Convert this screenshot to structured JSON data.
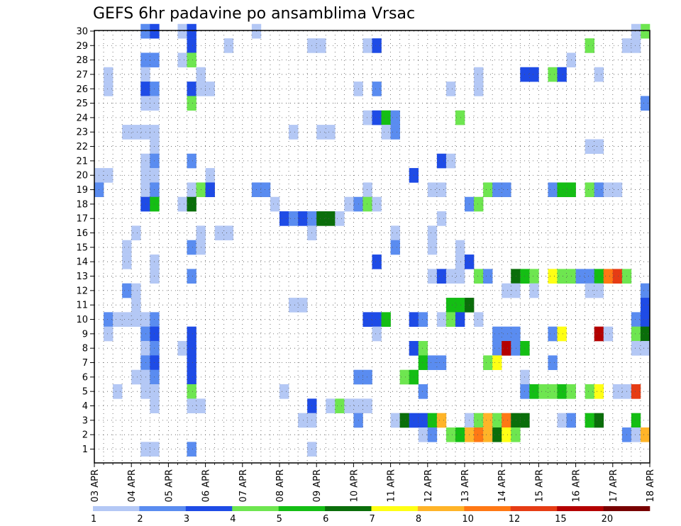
{
  "chart_data": {
    "type": "heatmap",
    "title": "GEFS 6hr padavine po ansamblima Vrsac",
    "xlabel": "",
    "ylabel": "",
    "x_tick_labels": [
      "03 APR",
      "04 APR",
      "05 APR",
      "06 APR",
      "07 APR",
      "08 APR",
      "09 APR",
      "10 APR",
      "11 APR",
      "12 APR",
      "13 APR",
      "14 APR",
      "15 APR",
      "16 APR",
      "17 APR",
      "18 APR"
    ],
    "y_tick_labels": [
      "1",
      "2",
      "3",
      "4",
      "5",
      "6",
      "7",
      "8",
      "9",
      "10",
      "11",
      "12",
      "13",
      "14",
      "15",
      "16",
      "17",
      "18",
      "19",
      "20",
      "21",
      "22",
      "23",
      "24",
      "25",
      "26",
      "27",
      "28",
      "29",
      "30"
    ],
    "n_time_steps": 60,
    "n_members": 30,
    "grid": true,
    "colorbar": {
      "position": "bottom",
      "levels": [
        1,
        2,
        3,
        4,
        5,
        6,
        7,
        8,
        10,
        12,
        15,
        20
      ],
      "colors": [
        "#b4c8f5",
        "#5a8cf0",
        "#1e4be6",
        "#6ee650",
        "#14be14",
        "#0a6e0a",
        "#ffff14",
        "#ffb428",
        "#ff7814",
        "#e63c14",
        "#b40000",
        "#780000"
      ]
    },
    "cells": [
      [
        30,
        5,
        1
      ],
      [
        30,
        6,
        2
      ],
      [
        30,
        9,
        0
      ],
      [
        30,
        10,
        2
      ],
      [
        30,
        17,
        0
      ],
      [
        30,
        59,
        3
      ],
      [
        30,
        58,
        0
      ],
      [
        29,
        10,
        2
      ],
      [
        29,
        14,
        0
      ],
      [
        29,
        23,
        0
      ],
      [
        29,
        24,
        0
      ],
      [
        29,
        29,
        0
      ],
      [
        29,
        30,
        2
      ],
      [
        29,
        53,
        3
      ],
      [
        29,
        57,
        0
      ],
      [
        29,
        58,
        0
      ],
      [
        28,
        5,
        1
      ],
      [
        28,
        6,
        1
      ],
      [
        28,
        9,
        0
      ],
      [
        28,
        10,
        3
      ],
      [
        28,
        51,
        0
      ],
      [
        27,
        1,
        0
      ],
      [
        27,
        5,
        0
      ],
      [
        27,
        11,
        0
      ],
      [
        27,
        41,
        0
      ],
      [
        27,
        46,
        2
      ],
      [
        27,
        47,
        2
      ],
      [
        27,
        49,
        3
      ],
      [
        27,
        50,
        2
      ],
      [
        27,
        54,
        0
      ],
      [
        26,
        1,
        0
      ],
      [
        26,
        5,
        2
      ],
      [
        26,
        6,
        1
      ],
      [
        26,
        10,
        2
      ],
      [
        26,
        11,
        0
      ],
      [
        26,
        12,
        0
      ],
      [
        26,
        28,
        0
      ],
      [
        26,
        30,
        1
      ],
      [
        26,
        38,
        0
      ],
      [
        26,
        41,
        0
      ],
      [
        25,
        5,
        0
      ],
      [
        25,
        6,
        0
      ],
      [
        25,
        10,
        3
      ],
      [
        25,
        59,
        1
      ],
      [
        24,
        29,
        0
      ],
      [
        24,
        30,
        2
      ],
      [
        24,
        31,
        4
      ],
      [
        24,
        32,
        1
      ],
      [
        24,
        39,
        3
      ],
      [
        23,
        3,
        0
      ],
      [
        23,
        4,
        0
      ],
      [
        23,
        5,
        0
      ],
      [
        23,
        6,
        0
      ],
      [
        23,
        21,
        0
      ],
      [
        23,
        24,
        0
      ],
      [
        23,
        25,
        0
      ],
      [
        23,
        31,
        0
      ],
      [
        23,
        32,
        1
      ],
      [
        22,
        6,
        0
      ],
      [
        22,
        53,
        0
      ],
      [
        22,
        54,
        0
      ],
      [
        21,
        5,
        0
      ],
      [
        21,
        6,
        1
      ],
      [
        21,
        10,
        1
      ],
      [
        21,
        37,
        2
      ],
      [
        21,
        38,
        0
      ],
      [
        20,
        0,
        0
      ],
      [
        20,
        1,
        0
      ],
      [
        20,
        5,
        0
      ],
      [
        20,
        6,
        0
      ],
      [
        20,
        12,
        0
      ],
      [
        20,
        34,
        2
      ],
      [
        19,
        0,
        1
      ],
      [
        19,
        5,
        0
      ],
      [
        19,
        6,
        1
      ],
      [
        19,
        10,
        0
      ],
      [
        19,
        11,
        3
      ],
      [
        19,
        12,
        2
      ],
      [
        19,
        17,
        1
      ],
      [
        19,
        18,
        1
      ],
      [
        19,
        29,
        0
      ],
      [
        19,
        36,
        0
      ],
      [
        19,
        37,
        0
      ],
      [
        19,
        42,
        3
      ],
      [
        19,
        43,
        1
      ],
      [
        19,
        44,
        1
      ],
      [
        19,
        49,
        1
      ],
      [
        19,
        50,
        4
      ],
      [
        19,
        51,
        4
      ],
      [
        19,
        53,
        3
      ],
      [
        19,
        54,
        1
      ],
      [
        19,
        55,
        0
      ],
      [
        19,
        56,
        0
      ],
      [
        18,
        5,
        2
      ],
      [
        18,
        6,
        4
      ],
      [
        18,
        9,
        0
      ],
      [
        18,
        10,
        5
      ],
      [
        18,
        19,
        0
      ],
      [
        18,
        27,
        0
      ],
      [
        18,
        28,
        1
      ],
      [
        18,
        29,
        3
      ],
      [
        18,
        30,
        0
      ],
      [
        18,
        40,
        1
      ],
      [
        18,
        41,
        3
      ],
      [
        17,
        20,
        2
      ],
      [
        17,
        21,
        1
      ],
      [
        17,
        22,
        2
      ],
      [
        17,
        23,
        1
      ],
      [
        17,
        24,
        5
      ],
      [
        17,
        25,
        5
      ],
      [
        17,
        26,
        0
      ],
      [
        17,
        37,
        0
      ],
      [
        16,
        4,
        0
      ],
      [
        16,
        11,
        0
      ],
      [
        16,
        13,
        0
      ],
      [
        16,
        14,
        0
      ],
      [
        16,
        23,
        0
      ],
      [
        16,
        32,
        0
      ],
      [
        16,
        36,
        0
      ],
      [
        15,
        3,
        0
      ],
      [
        15,
        10,
        1
      ],
      [
        15,
        11,
        0
      ],
      [
        15,
        32,
        1
      ],
      [
        15,
        36,
        0
      ],
      [
        15,
        39,
        0
      ],
      [
        14,
        3,
        0
      ],
      [
        14,
        6,
        0
      ],
      [
        14,
        30,
        2
      ],
      [
        14,
        39,
        0
      ],
      [
        14,
        40,
        2
      ],
      [
        13,
        6,
        0
      ],
      [
        13,
        10,
        1
      ],
      [
        13,
        36,
        0
      ],
      [
        13,
        37,
        2
      ],
      [
        13,
        38,
        0
      ],
      [
        13,
        39,
        0
      ],
      [
        13,
        41,
        3
      ],
      [
        13,
        42,
        1
      ],
      [
        13,
        45,
        5
      ],
      [
        13,
        46,
        4
      ],
      [
        13,
        47,
        3
      ],
      [
        13,
        49,
        6
      ],
      [
        13,
        50,
        3
      ],
      [
        13,
        51,
        3
      ],
      [
        13,
        52,
        1
      ],
      [
        13,
        53,
        1
      ],
      [
        13,
        54,
        4
      ],
      [
        13,
        55,
        8
      ],
      [
        13,
        56,
        9
      ],
      [
        13,
        57,
        3
      ],
      [
        12,
        3,
        1
      ],
      [
        12,
        4,
        0
      ],
      [
        12,
        44,
        0
      ],
      [
        12,
        45,
        0
      ],
      [
        12,
        47,
        0
      ],
      [
        12,
        53,
        0
      ],
      [
        12,
        54,
        0
      ],
      [
        12,
        59,
        1
      ],
      [
        11,
        4,
        0
      ],
      [
        11,
        21,
        0
      ],
      [
        11,
        22,
        0
      ],
      [
        11,
        38,
        4
      ],
      [
        11,
        39,
        4
      ],
      [
        11,
        40,
        5
      ],
      [
        11,
        59,
        2
      ],
      [
        10,
        1,
        1
      ],
      [
        10,
        2,
        0
      ],
      [
        10,
        3,
        0
      ],
      [
        10,
        4,
        0
      ],
      [
        10,
        5,
        0
      ],
      [
        10,
        6,
        1
      ],
      [
        10,
        29,
        2
      ],
      [
        10,
        30,
        2
      ],
      [
        10,
        31,
        4
      ],
      [
        10,
        34,
        2
      ],
      [
        10,
        35,
        1
      ],
      [
        10,
        37,
        0
      ],
      [
        10,
        38,
        3
      ],
      [
        10,
        39,
        2
      ],
      [
        10,
        41,
        0
      ],
      [
        10,
        58,
        1
      ],
      [
        10,
        59,
        2
      ],
      [
        9,
        1,
        0
      ],
      [
        9,
        5,
        1
      ],
      [
        9,
        6,
        2
      ],
      [
        9,
        10,
        2
      ],
      [
        9,
        30,
        0
      ],
      [
        9,
        43,
        1
      ],
      [
        9,
        44,
        1
      ],
      [
        9,
        45,
        1
      ],
      [
        9,
        49,
        1
      ],
      [
        9,
        50,
        6
      ],
      [
        9,
        54,
        10
      ],
      [
        9,
        55,
        0
      ],
      [
        9,
        58,
        3
      ],
      [
        9,
        59,
        5
      ],
      [
        8,
        5,
        0
      ],
      [
        8,
        6,
        1
      ],
      [
        8,
        9,
        0
      ],
      [
        8,
        10,
        2
      ],
      [
        8,
        34,
        2
      ],
      [
        8,
        35,
        3
      ],
      [
        8,
        43,
        1
      ],
      [
        8,
        44,
        10
      ],
      [
        8,
        45,
        1
      ],
      [
        8,
        46,
        4
      ],
      [
        8,
        58,
        0
      ],
      [
        8,
        59,
        0
      ],
      [
        7,
        5,
        1
      ],
      [
        7,
        6,
        2
      ],
      [
        7,
        10,
        2
      ],
      [
        7,
        35,
        4
      ],
      [
        7,
        36,
        1
      ],
      [
        7,
        37,
        1
      ],
      [
        7,
        42,
        3
      ],
      [
        7,
        43,
        6
      ],
      [
        7,
        49,
        1
      ],
      [
        6,
        4,
        0
      ],
      [
        6,
        5,
        0
      ],
      [
        6,
        6,
        1
      ],
      [
        6,
        10,
        2
      ],
      [
        6,
        28,
        1
      ],
      [
        6,
        29,
        1
      ],
      [
        6,
        33,
        3
      ],
      [
        6,
        34,
        4
      ],
      [
        6,
        46,
        0
      ],
      [
        5,
        2,
        0
      ],
      [
        5,
        5,
        0
      ],
      [
        5,
        6,
        0
      ],
      [
        5,
        10,
        3
      ],
      [
        5,
        20,
        0
      ],
      [
        5,
        35,
        1
      ],
      [
        5,
        46,
        1
      ],
      [
        5,
        47,
        4
      ],
      [
        5,
        48,
        3
      ],
      [
        5,
        49,
        3
      ],
      [
        5,
        50,
        4
      ],
      [
        5,
        51,
        3
      ],
      [
        5,
        53,
        3
      ],
      [
        5,
        54,
        6
      ],
      [
        5,
        56,
        0
      ],
      [
        5,
        57,
        0
      ],
      [
        5,
        58,
        9
      ],
      [
        4,
        6,
        0
      ],
      [
        4,
        10,
        0
      ],
      [
        4,
        11,
        0
      ],
      [
        4,
        23,
        2
      ],
      [
        4,
        25,
        0
      ],
      [
        4,
        26,
        3
      ],
      [
        4,
        27,
        0
      ],
      [
        4,
        28,
        0
      ],
      [
        4,
        29,
        0
      ],
      [
        3,
        22,
        0
      ],
      [
        3,
        23,
        0
      ],
      [
        3,
        28,
        1
      ],
      [
        3,
        32,
        0
      ],
      [
        3,
        33,
        5
      ],
      [
        3,
        34,
        2
      ],
      [
        3,
        35,
        2
      ],
      [
        3,
        36,
        4
      ],
      [
        3,
        37,
        7
      ],
      [
        3,
        40,
        0
      ],
      [
        3,
        41,
        3
      ],
      [
        3,
        42,
        7
      ],
      [
        3,
        43,
        3
      ],
      [
        3,
        44,
        8
      ],
      [
        3,
        45,
        5
      ],
      [
        3,
        46,
        5
      ],
      [
        3,
        50,
        0
      ],
      [
        3,
        51,
        1
      ],
      [
        3,
        53,
        4
      ],
      [
        3,
        54,
        5
      ],
      [
        3,
        58,
        4
      ],
      [
        2,
        35,
        0
      ],
      [
        2,
        36,
        1
      ],
      [
        2,
        38,
        3
      ],
      [
        2,
        39,
        4
      ],
      [
        2,
        40,
        7
      ],
      [
        2,
        41,
        8
      ],
      [
        2,
        42,
        7
      ],
      [
        2,
        43,
        5
      ],
      [
        2,
        44,
        6
      ],
      [
        2,
        45,
        3
      ],
      [
        2,
        57,
        1
      ],
      [
        2,
        58,
        0
      ],
      [
        2,
        59,
        7
      ],
      [
        1,
        5,
        0
      ],
      [
        1,
        6,
        0
      ],
      [
        1,
        10,
        1
      ],
      [
        1,
        23,
        0
      ]
    ]
  }
}
